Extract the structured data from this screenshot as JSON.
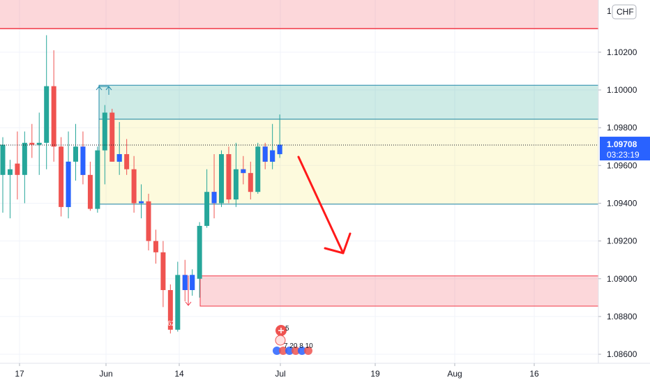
{
  "chart_data": {
    "type": "candlestick",
    "currency_label": "CHF",
    "y_ticks": [
      "1.08600",
      "1.08800",
      "1.09000",
      "1.09200",
      "1.09400",
      "1.09600",
      "1.09800",
      "1.10000",
      "1.10200"
    ],
    "x_ticks": [
      "17",
      "Jun",
      "14",
      "Jul",
      "19",
      "Aug",
      "16"
    ],
    "current_price": "1.09708",
    "countdown": "03:23:19",
    "partial_top_label": "1.",
    "event_marker_count": "5",
    "event_marker_values": "7 20 8 10",
    "zones": [
      {
        "kind": "resistance",
        "color": "#f23645",
        "top": 1.106,
        "line": 1.10325
      },
      {
        "kind": "target",
        "color": "#089981",
        "top": 1.10025,
        "bottom": 1.09845
      },
      {
        "kind": "range",
        "color": "#f5e663",
        "top": 1.09845,
        "bottom": 1.09395
      },
      {
        "kind": "support",
        "color": "#f23645",
        "top": 1.09015,
        "bottom": 1.08855
      }
    ],
    "arrow": {
      "from": [
        1.0966
      ],
      "to": [
        1.0913
      ],
      "color": "#ff1a1a"
    },
    "candles": [
      {
        "o": 1.0955,
        "h": 1.0975,
        "l": 1.0935,
        "c": 1.0971
      },
      {
        "o": 1.0955,
        "h": 1.0963,
        "l": 1.0932,
        "c": 1.0958
      },
      {
        "o": 1.0961,
        "h": 1.0978,
        "l": 1.0942,
        "c": 1.0955
      },
      {
        "o": 1.0955,
        "h": 1.0978,
        "l": 1.094,
        "c": 1.0972
      },
      {
        "o": 1.0972,
        "h": 1.0982,
        "l": 1.0964,
        "c": 1.0971
      },
      {
        "o": 1.0971,
        "h": 1.0988,
        "l": 1.0955,
        "c": 1.0972
      },
      {
        "o": 1.0972,
        "h": 1.1029,
        "l": 1.0958,
        "c": 1.1002
      },
      {
        "o": 1.1002,
        "h": 1.1021,
        "l": 1.0962,
        "c": 1.097
      },
      {
        "o": 1.097,
        "h": 1.0975,
        "l": 1.0933,
        "c": 1.0938
      },
      {
        "o": 1.0938,
        "h": 1.0978,
        "l": 1.0932,
        "c": 1.0962
      },
      {
        "o": 1.0962,
        "h": 1.0982,
        "l": 1.0952,
        "c": 1.097
      },
      {
        "o": 1.097,
        "h": 1.0978,
        "l": 1.095,
        "c": 1.0955
      },
      {
        "o": 1.0955,
        "h": 1.0962,
        "l": 1.0936,
        "c": 1.0937
      },
      {
        "o": 1.0937,
        "h": 1.097,
        "l": 1.0935,
        "c": 1.0968
      },
      {
        "o": 1.0968,
        "h": 1.0992,
        "l": 1.095,
        "c": 1.0988
      },
      {
        "o": 1.0988,
        "h": 1.099,
        "l": 1.0962,
        "c": 1.0962
      },
      {
        "o": 1.0962,
        "h": 1.0983,
        "l": 1.0955,
        "c": 1.0966
      },
      {
        "o": 1.0966,
        "h": 1.0974,
        "l": 1.0955,
        "c": 1.0958
      },
      {
        "o": 1.0958,
        "h": 1.0965,
        "l": 1.0935,
        "c": 1.094
      },
      {
        "o": 1.094,
        "h": 1.095,
        "l": 1.0932,
        "c": 1.0941
      },
      {
        "o": 1.0941,
        "h": 1.0945,
        "l": 1.0915,
        "c": 1.092
      },
      {
        "o": 1.092,
        "h": 1.0926,
        "l": 1.0908,
        "c": 1.0914
      },
      {
        "o": 1.0914,
        "h": 1.092,
        "l": 1.0885,
        "c": 1.0894
      },
      {
        "o": 1.0894,
        "h": 1.0897,
        "l": 1.0871,
        "c": 1.0873
      },
      {
        "o": 1.0873,
        "h": 1.0909,
        "l": 1.0872,
        "c": 1.0902
      },
      {
        "o": 1.0902,
        "h": 1.091,
        "l": 1.0888,
        "c": 1.0894
      },
      {
        "o": 1.0894,
        "h": 1.0905,
        "l": 1.0891,
        "c": 1.0902
      },
      {
        "o": 1.09,
        "h": 1.093,
        "l": 1.089,
        "c": 1.0928
      },
      {
        "o": 1.0928,
        "h": 1.0958,
        "l": 1.0927,
        "c": 1.0946
      },
      {
        "o": 1.0946,
        "h": 1.0966,
        "l": 1.0932,
        "c": 1.094
      },
      {
        "o": 1.094,
        "h": 1.0968,
        "l": 1.0938,
        "c": 1.0966
      },
      {
        "o": 1.0966,
        "h": 1.097,
        "l": 1.094,
        "c": 1.0942
      },
      {
        "o": 1.0942,
        "h": 1.0972,
        "l": 1.0938,
        "c": 1.0958
      },
      {
        "o": 1.0958,
        "h": 1.0965,
        "l": 1.095,
        "c": 1.0956
      },
      {
        "o": 1.0956,
        "h": 1.0962,
        "l": 1.0942,
        "c": 1.0946
      },
      {
        "o": 1.0946,
        "h": 1.0972,
        "l": 1.0945,
        "c": 1.097
      },
      {
        "o": 1.097,
        "h": 1.0972,
        "l": 1.0958,
        "c": 1.0962
      },
      {
        "o": 1.0962,
        "h": 1.0982,
        "l": 1.0958,
        "c": 1.0968
      },
      {
        "o": 1.0966,
        "h": 1.0987,
        "l": 1.0964,
        "c": 1.0971
      }
    ],
    "grid": true,
    "bull_color": "#26a69a",
    "bear_color": "#ef5350",
    "price_tag_color": "#2962ff"
  }
}
